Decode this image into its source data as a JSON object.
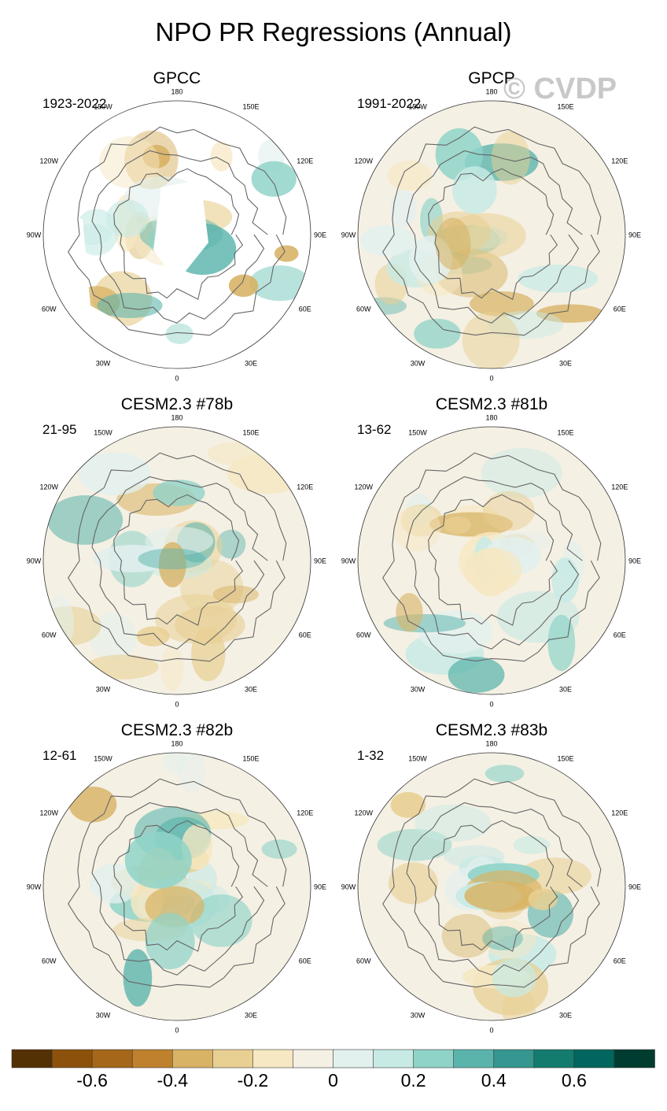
{
  "title": "NPO PR Regressions (Annual)",
  "watermark": "© CVDP",
  "chart_data": {
    "type": "heatmap",
    "projection": "north-polar-stereographic",
    "longitude_labels": [
      "180",
      "150E",
      "120E",
      "90E",
      "60E",
      "30E",
      "0",
      "30W",
      "60W",
      "90W",
      "120W",
      "150W"
    ],
    "panels": [
      {
        "name": "GPCC",
        "period": "1923-2022"
      },
      {
        "name": "GPCP",
        "period": "1991-2022"
      },
      {
        "name": "CESM2.3 #78b",
        "period": "21-95"
      },
      {
        "name": "CESM2.3 #81b",
        "period": "13-62"
      },
      {
        "name": "CESM2.3 #82b",
        "period": "12-61"
      },
      {
        "name": "CESM2.3 #83b",
        "period": "1-32"
      }
    ],
    "colorbar": {
      "levels": [
        -0.7,
        -0.6,
        -0.5,
        -0.4,
        -0.3,
        -0.2,
        -0.1,
        0,
        0.1,
        0.2,
        0.3,
        0.4,
        0.5,
        0.6,
        0.7
      ],
      "tick_labels": [
        "-0.6",
        "-0.4",
        "-0.2",
        "0",
        "0.2",
        "0.4",
        "0.6"
      ],
      "colors": [
        "#543005",
        "#8c510a",
        "#a5671a",
        "#bf812d",
        "#d8b365",
        "#e8cf92",
        "#f6e8c3",
        "#f5f0e4",
        "#e2f0ee",
        "#c7eae5",
        "#8fd3c8",
        "#5ab4ac",
        "#35978f",
        "#137c6e",
        "#01665e",
        "#003c30"
      ]
    }
  }
}
